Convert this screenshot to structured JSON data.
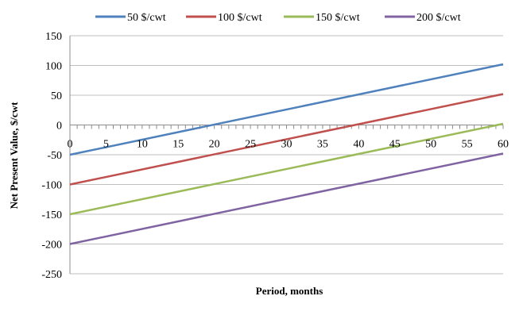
{
  "chart_data": {
    "type": "line",
    "title": "",
    "xlabel": "Period, months",
    "ylabel": "Net Present Value, $/cwt",
    "xlim": [
      0,
      60
    ],
    "ylim": [
      -250,
      150
    ],
    "x_ticks": [
      0,
      5,
      10,
      15,
      20,
      25,
      30,
      35,
      40,
      45,
      50,
      55,
      60
    ],
    "y_ticks": [
      150,
      100,
      50,
      0,
      -50,
      -100,
      -150,
      -200,
      -250
    ],
    "x_minor_step": 1,
    "grid": "horizontal",
    "legend_position": "top",
    "series": [
      {
        "name": "50 $/cwt",
        "color": "#4f81bd",
        "x": [
          0,
          60
        ],
        "y": [
          -50,
          102
        ]
      },
      {
        "name": "100 $/cwt",
        "color": "#c0504d",
        "x": [
          0,
          60
        ],
        "y": [
          -100,
          52
        ]
      },
      {
        "name": "150 $/cwt",
        "color": "#9bbb59",
        "x": [
          0,
          60
        ],
        "y": [
          -150,
          2
        ]
      },
      {
        "name": "200 $/cwt",
        "color": "#8064a2",
        "x": [
          0,
          60
        ],
        "y": [
          -200,
          -48
        ]
      }
    ]
  }
}
